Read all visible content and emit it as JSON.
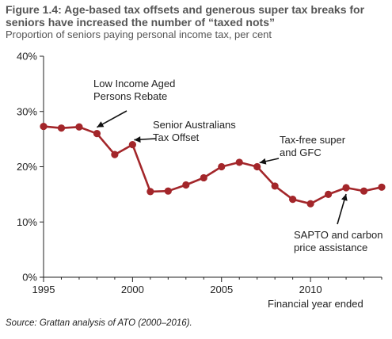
{
  "title": "Figure 1.4: Age-based tax offsets and generous super tax breaks for seniors have increased the number of “taxed nots”",
  "subtitle": "Proportion of seniors paying personal income tax, per cent",
  "source": "Source: Grattan analysis of ATO (2000–2016).",
  "chart_data": {
    "type": "line",
    "x": [
      1995,
      1996,
      1997,
      1998,
      1999,
      2000,
      2001,
      2002,
      2003,
      2004,
      2005,
      2006,
      2007,
      2008,
      2009,
      2010,
      2011,
      2012,
      2013,
      2014
    ],
    "series": [
      {
        "values": [
          27.3,
          27.0,
          27.2,
          26.0,
          22.2,
          24.0,
          15.5,
          15.6,
          16.7,
          18.0,
          20.0,
          20.8,
          20.0,
          16.5,
          14.1,
          13.3,
          15.0,
          16.2,
          15.6,
          16.3
        ]
      }
    ],
    "xlim": [
      1995,
      2014
    ],
    "ylim": [
      0,
      40
    ],
    "yticks": [
      0,
      10,
      20,
      30,
      40
    ],
    "ytick_labels": [
      "0%",
      "10%",
      "20%",
      "30%",
      "40%"
    ],
    "xticks": [
      1995,
      2000,
      2005,
      2010
    ],
    "xtick_labels": [
      "1995",
      "2000",
      "2005",
      "2010"
    ],
    "xlabel": "Financial year ended",
    "ylabel": "",
    "grid": false,
    "line_color": "#a3262a",
    "annotations": [
      {
        "lines": [
          "Low Income Aged",
          "Persons Rebate"
        ],
        "point_x": 1998
      },
      {
        "lines": [
          "Senior Australians",
          "Tax Offset"
        ],
        "point_x": 2000
      },
      {
        "lines": [
          "Tax-free super",
          "and GFC"
        ],
        "point_x": 2007
      },
      {
        "lines": [
          "SAPTO and carbon",
          "price assistance"
        ],
        "point_x": 2012
      }
    ]
  }
}
